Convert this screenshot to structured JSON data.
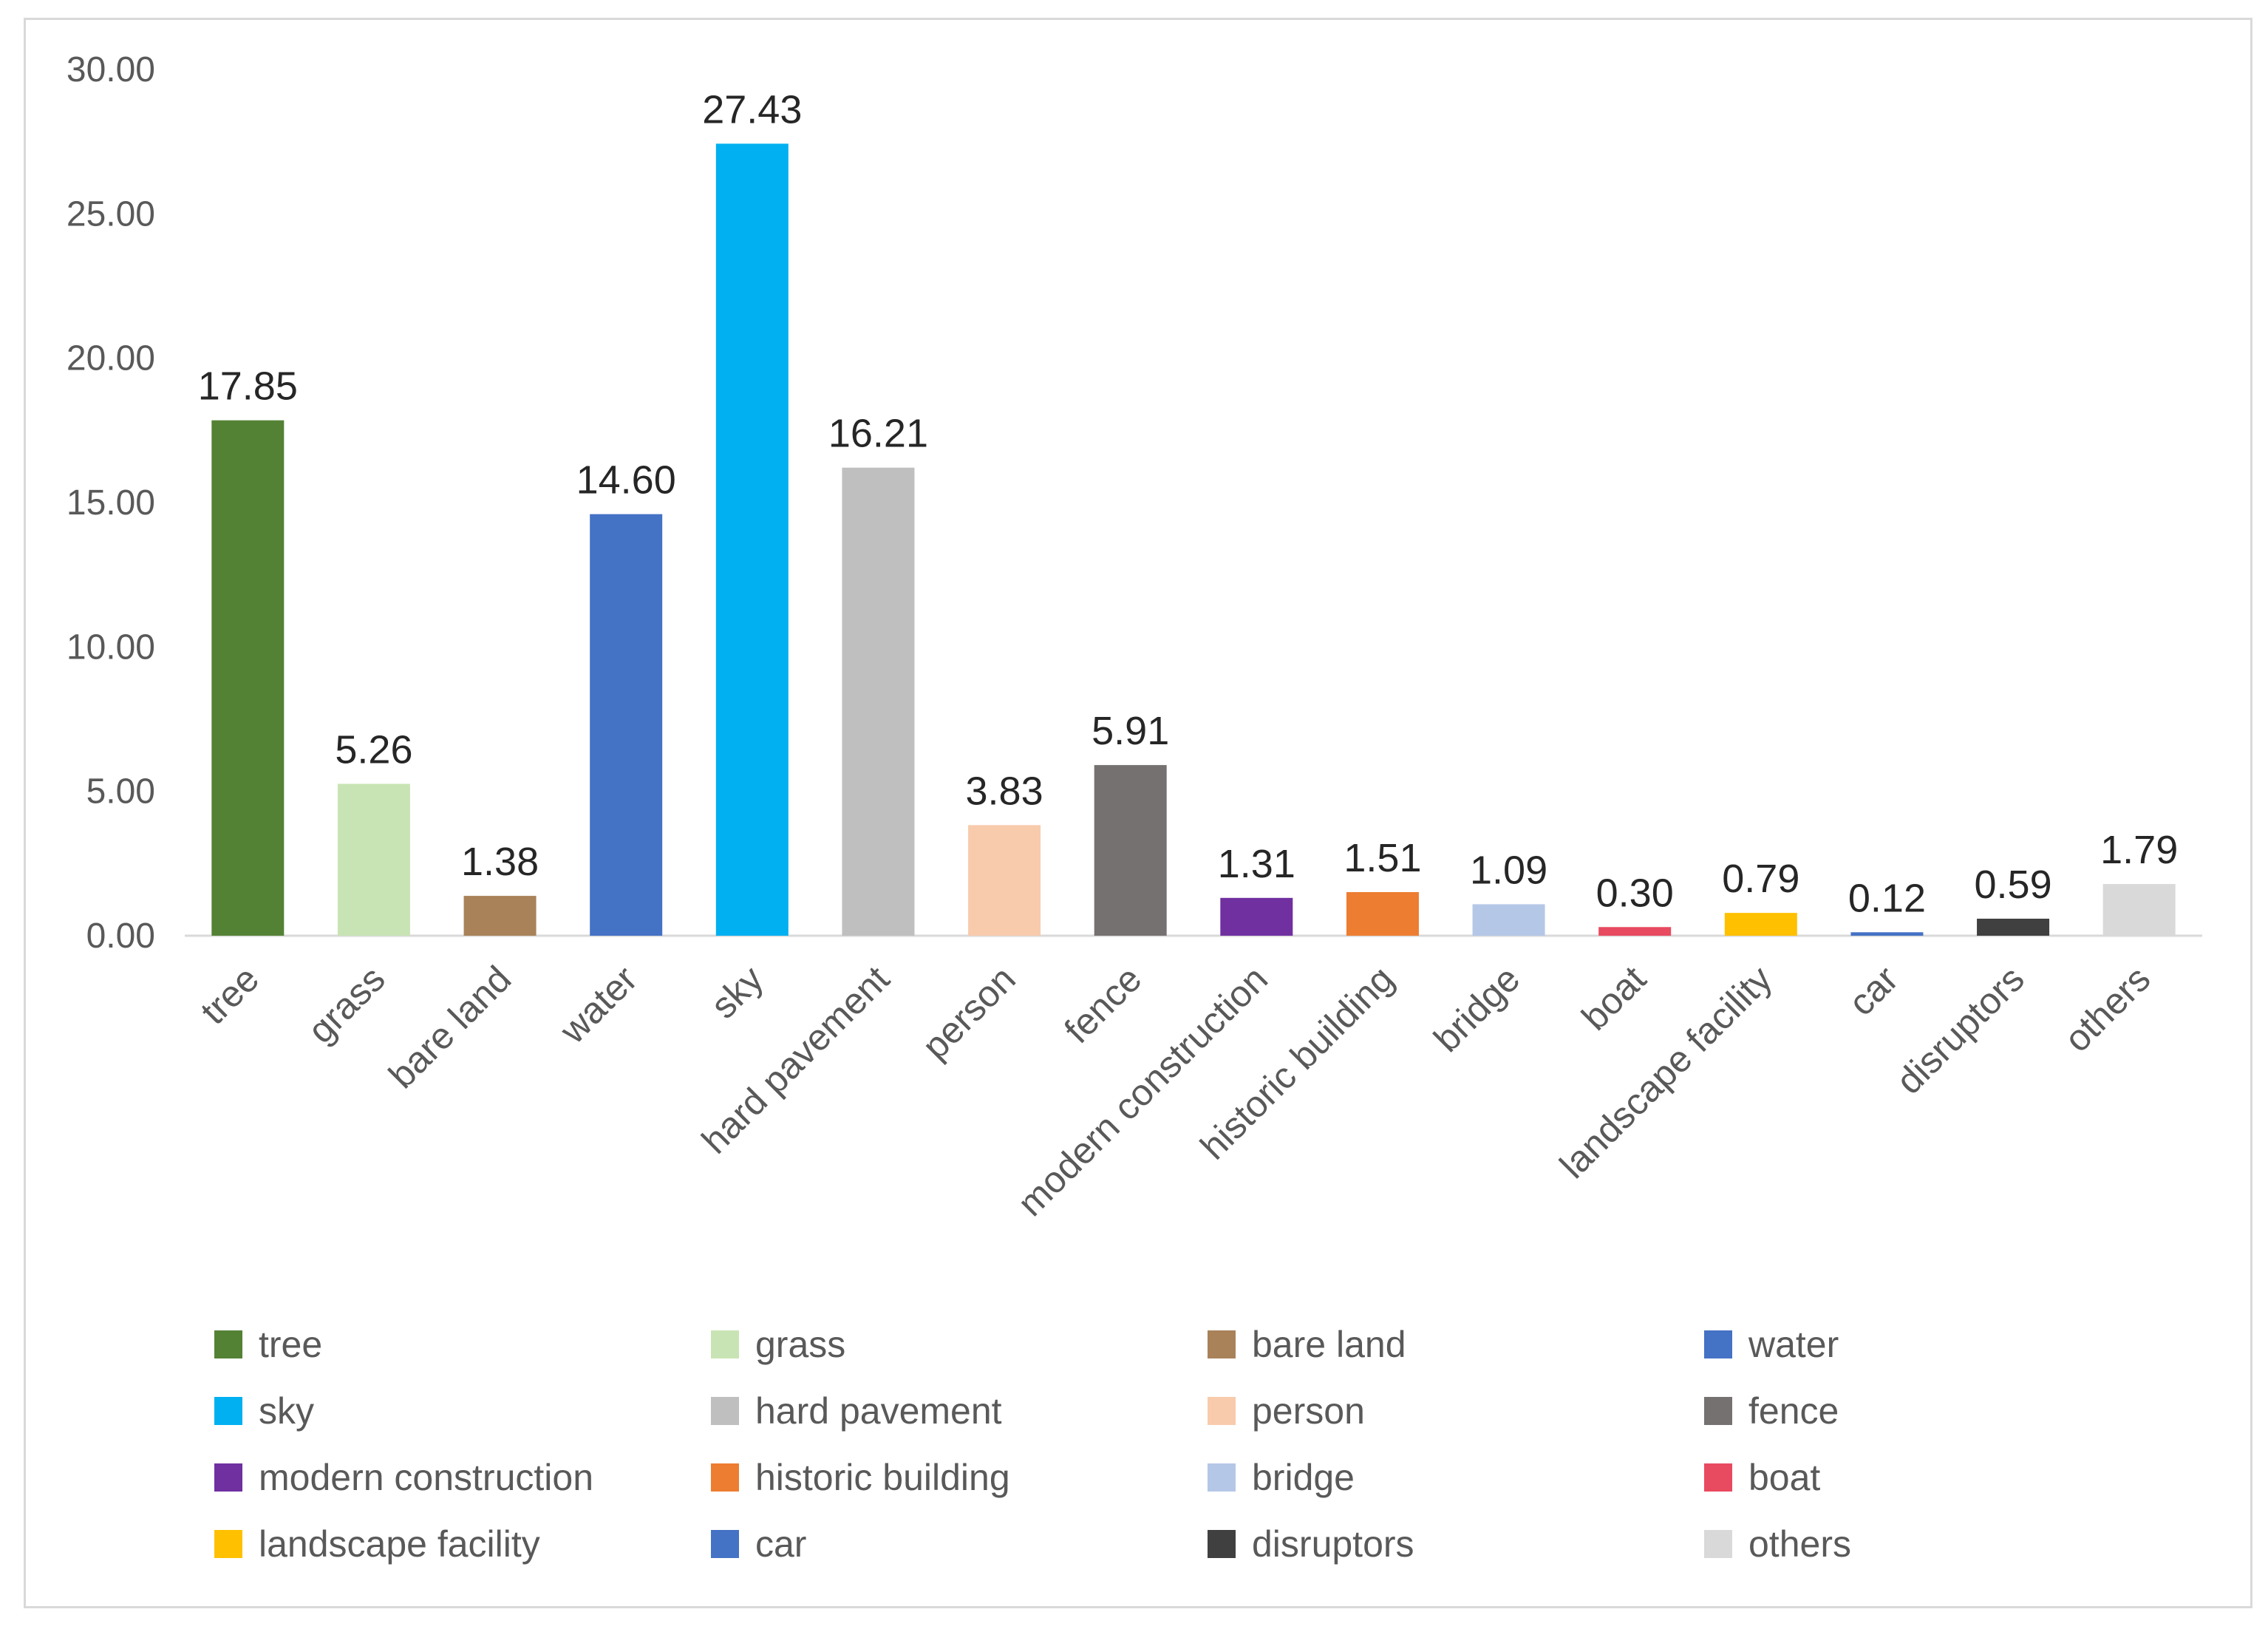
{
  "chart_data": {
    "type": "bar",
    "title": "",
    "xlabel": "",
    "ylabel": "",
    "ylim": [
      0,
      30
    ],
    "yticks": [
      "0.00",
      "5.00",
      "10.00",
      "15.00",
      "20.00",
      "25.00",
      "30.00"
    ],
    "grid": false,
    "legend_position": "bottom",
    "categories": [
      "tree",
      "grass",
      "bare land",
      "water",
      "sky",
      "hard pavement",
      "person",
      "fence",
      "modern construction",
      "historic building",
      "bridge",
      "boat",
      "landscape facility",
      "car",
      "disruptors",
      "others"
    ],
    "values": [
      17.85,
      5.26,
      1.38,
      14.6,
      27.43,
      16.21,
      3.83,
      5.91,
      1.31,
      1.51,
      1.09,
      0.3,
      0.79,
      0.12,
      0.59,
      1.79
    ],
    "value_labels": [
      "17.85",
      "5.26",
      "1.38",
      "14.60",
      "27.43",
      "16.21",
      "3.83",
      "5.91",
      "1.31",
      "1.51",
      "1.09",
      "0.30",
      "0.79",
      "0.12",
      "0.59",
      "1.79"
    ],
    "colors": [
      "#548235",
      "#c9e4b4",
      "#a9825a",
      "#4472c4",
      "#00b0f0",
      "#bfbfbf",
      "#f8cbad",
      "#767171",
      "#7030a0",
      "#ed7d31",
      "#b4c7e7",
      "#e84a5f",
      "#ffc000",
      "#4472c4",
      "#404040",
      "#d9d9d9"
    ]
  }
}
